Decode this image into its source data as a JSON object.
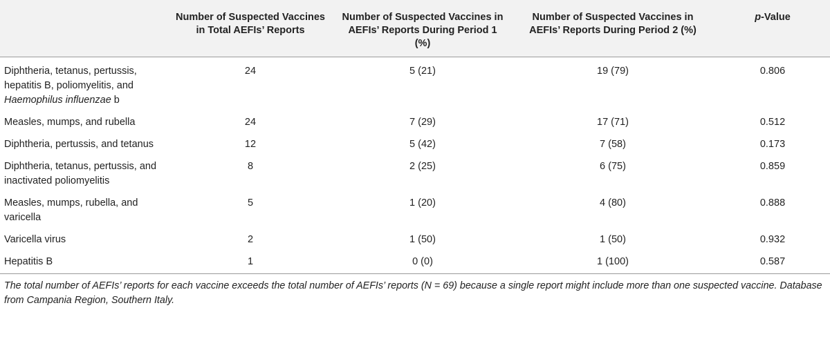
{
  "table": {
    "headers": {
      "vaccine": "",
      "total": "Number of Suspected Vaccines in Total AEFIs’ Reports",
      "period1": "Number of Suspected Vaccines in AEFIs’ Reports During Period 1 (%)",
      "period2": "Number of Suspected Vaccines in AEFIs’ Reports During Period 2 (%)",
      "p_italic": "p",
      "p_rest": "-Value"
    },
    "rows": [
      {
        "vaccine": "Diphtheria, tetanus, pertussis, hepatitis B, poliomyelitis, and ",
        "vaccine_italic": "Haemophilus influenzae",
        "vaccine_tail": " b",
        "total": "24",
        "period1": "5 (21)",
        "period2": "19 (79)",
        "p": "0.806"
      },
      {
        "vaccine": "Measles, mumps, and rubella",
        "total": "24",
        "period1": "7 (29)",
        "period2": "17 (71)",
        "p": "0.512"
      },
      {
        "vaccine": "Diphtheria, pertussis, and tetanus",
        "total": "12",
        "period1": "5 (42)",
        "period2": "7 (58)",
        "p": "0.173"
      },
      {
        "vaccine": "Diphtheria, tetanus, pertussis, and inactivated poliomyelitis",
        "total": "8",
        "period1": "2 (25)",
        "period2": "6 (75)",
        "p": "0.859"
      },
      {
        "vaccine": "Measles, mumps, rubella, and varicella",
        "total": "5",
        "period1": "1 (20)",
        "period2": "4 (80)",
        "p": "0.888"
      },
      {
        "vaccine": "Varicella virus",
        "total": "2",
        "period1": "1 (50)",
        "period2": "1 (50)",
        "p": "0.932"
      },
      {
        "vaccine": "Hepatitis B",
        "total": "1",
        "period1": "0 (0)",
        "period2": "1 (100)",
        "p": "0.587"
      }
    ]
  },
  "footnote": "The total number of AEFIs’ reports for each vaccine exceeds the total number of AEFIs’ reports (N = 69) because a single report might include more than one suspected vaccine. Database from Campania Region, Southern Italy."
}
